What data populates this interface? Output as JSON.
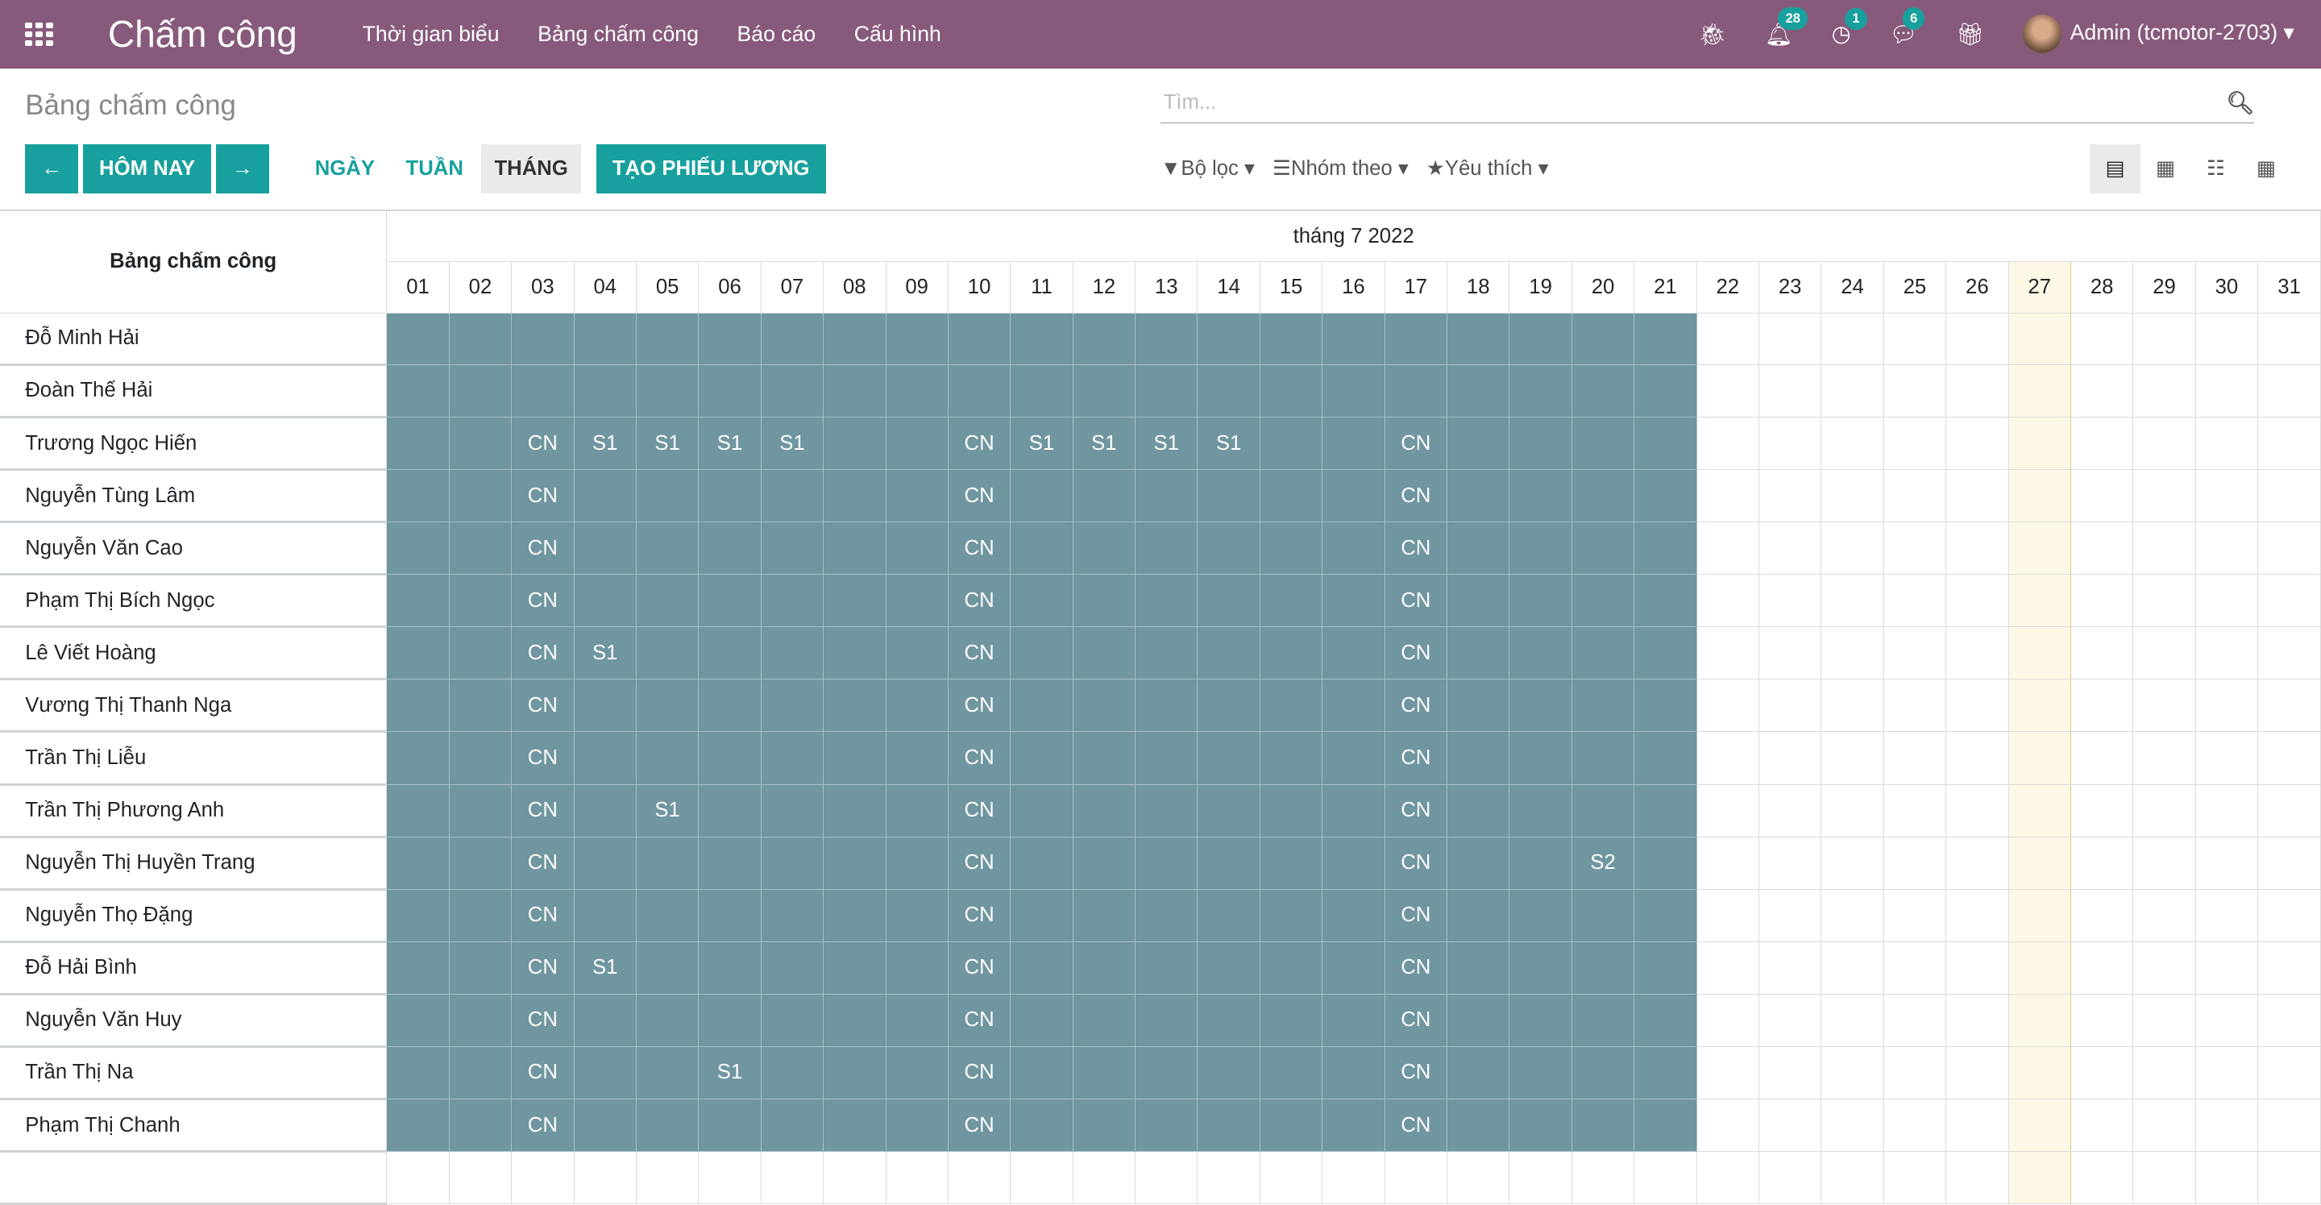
{
  "navbar": {
    "app_title": "Chấm công",
    "menu": [
      "Thời gian biểu",
      "Bảng chấm công",
      "Báo cáo",
      "Cấu hình"
    ],
    "notifications": "28",
    "activities": "1",
    "messages": "6",
    "user": "Admin (tcmotor-2703)",
    "color": "#875A7B"
  },
  "page": {
    "title": "Bảng chấm công",
    "search_placeholder": "Tìm..."
  },
  "toolbar": {
    "prev": "←",
    "today": "HÔM NAY",
    "next": "→",
    "scales": [
      "NGÀY",
      "TUẦN",
      "THÁNG"
    ],
    "active_scale": "THÁNG",
    "create_payslip": "TẠO PHIẾU LƯƠNG",
    "filter": "Bộ lọc",
    "group_by": "Nhóm theo",
    "favorites": "Yêu thích",
    "views": [
      "gantt",
      "calendar",
      "list",
      "pivot"
    ],
    "active_view": "gantt",
    "accent": "#17a09d"
  },
  "grid": {
    "row_header": "Bảng chấm công",
    "month": "tháng 7 2022",
    "days": [
      "01",
      "02",
      "03",
      "04",
      "05",
      "06",
      "07",
      "08",
      "09",
      "10",
      "11",
      "12",
      "13",
      "14",
      "15",
      "16",
      "17",
      "18",
      "19",
      "20",
      "21",
      "22",
      "23",
      "24",
      "25",
      "26",
      "27",
      "28",
      "29",
      "30",
      "31"
    ],
    "today": "27",
    "filled_through": "21",
    "fill_color": "#7096a0",
    "rows": [
      {
        "name": "Đỗ Minh Hải",
        "marks": {}
      },
      {
        "name": "Đoàn Thế Hải",
        "marks": {}
      },
      {
        "name": "Trương Ngọc Hiến",
        "marks": {
          "03": "CN",
          "04": "S1",
          "05": "S1",
          "06": "S1",
          "07": "S1",
          "10": "CN",
          "11": "S1",
          "12": "S1",
          "13": "S1",
          "14": "S1",
          "17": "CN"
        }
      },
      {
        "name": "Nguyễn Tùng Lâm",
        "marks": {
          "03": "CN",
          "10": "CN",
          "17": "CN"
        }
      },
      {
        "name": "Nguyễn Văn Cao",
        "marks": {
          "03": "CN",
          "10": "CN",
          "17": "CN"
        }
      },
      {
        "name": "Phạm Thị Bích Ngọc",
        "marks": {
          "03": "CN",
          "10": "CN",
          "17": "CN"
        }
      },
      {
        "name": "Lê Viết Hoàng",
        "marks": {
          "03": "CN",
          "04": "S1",
          "10": "CN",
          "17": "CN"
        }
      },
      {
        "name": "Vương Thị Thanh Nga",
        "marks": {
          "03": "CN",
          "10": "CN",
          "17": "CN"
        }
      },
      {
        "name": "Trần Thị Liễu",
        "marks": {
          "03": "CN",
          "10": "CN",
          "17": "CN"
        }
      },
      {
        "name": "Trần Thị Phương Anh",
        "marks": {
          "03": "CN",
          "05": "S1",
          "10": "CN",
          "17": "CN"
        }
      },
      {
        "name": "Nguyễn Thị Huyền Trang",
        "marks": {
          "03": "CN",
          "10": "CN",
          "17": "CN",
          "20": "S2"
        }
      },
      {
        "name": "Nguyễn Thọ Đặng",
        "marks": {
          "03": "CN",
          "10": "CN",
          "17": "CN"
        }
      },
      {
        "name": "Đỗ Hải Bình",
        "marks": {
          "03": "CN",
          "04": "S1",
          "10": "CN",
          "17": "CN"
        }
      },
      {
        "name": "Nguyễn Văn Huy",
        "marks": {
          "03": "CN",
          "10": "CN",
          "17": "CN"
        }
      },
      {
        "name": "Trần Thị Na",
        "marks": {
          "03": "CN",
          "06": "S1",
          "10": "CN",
          "17": "CN"
        }
      },
      {
        "name": "Phạm Thị Chanh",
        "marks": {
          "03": "CN",
          "10": "CN",
          "17": "CN"
        }
      },
      {
        "name": "",
        "marks": {}
      }
    ]
  }
}
